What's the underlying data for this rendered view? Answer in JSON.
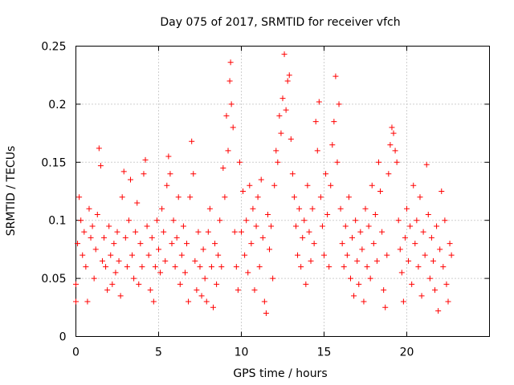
{
  "chart_data": {
    "type": "scatter",
    "title": "Day 075 of 2017, SRMTID for receiver vfch",
    "xlabel": "GPS time / hours",
    "ylabel": "SRMTID / TECUs",
    "xlim": [
      0,
      25
    ],
    "ylim": [
      0,
      0.25
    ],
    "xticks": [
      0,
      5,
      10,
      15,
      20
    ],
    "xtick_labels": [
      "0",
      "5",
      "10",
      "15",
      "20"
    ],
    "yticks": [
      0,
      0.05,
      0.1,
      0.15,
      0.2,
      0.25
    ],
    "ytick_labels": [
      "0",
      "0.05",
      "0.1",
      "0.15",
      "0.2",
      "0.25"
    ],
    "grid": true,
    "marker": "plus",
    "series": [
      {
        "name": "SRMTID",
        "color": "#ff0000",
        "points": [
          [
            0.0,
            0.045
          ],
          [
            0.0,
            0.03
          ],
          [
            0.1,
            0.08
          ],
          [
            0.2,
            0.12
          ],
          [
            0.3,
            0.1
          ],
          [
            0.4,
            0.07
          ],
          [
            0.5,
            0.09
          ],
          [
            0.6,
            0.06
          ],
          [
            0.7,
            0.03
          ],
          [
            0.8,
            0.11
          ],
          [
            0.9,
            0.085
          ],
          [
            1.0,
            0.095
          ],
          [
            1.1,
            0.05
          ],
          [
            1.2,
            0.075
          ],
          [
            1.3,
            0.105
          ],
          [
            1.4,
            0.162
          ],
          [
            1.5,
            0.147
          ],
          [
            1.6,
            0.065
          ],
          [
            1.7,
            0.085
          ],
          [
            1.8,
            0.06
          ],
          [
            1.9,
            0.04
          ],
          [
            2.0,
            0.095
          ],
          [
            2.1,
            0.07
          ],
          [
            2.2,
            0.045
          ],
          [
            2.3,
            0.08
          ],
          [
            2.4,
            0.055
          ],
          [
            2.5,
            0.09
          ],
          [
            2.6,
            0.065
          ],
          [
            2.7,
            0.035
          ],
          [
            2.8,
            0.12
          ],
          [
            2.9,
            0.142
          ],
          [
            3.0,
            0.085
          ],
          [
            3.1,
            0.06
          ],
          [
            3.2,
            0.1
          ],
          [
            3.3,
            0.135
          ],
          [
            3.4,
            0.07
          ],
          [
            3.5,
            0.05
          ],
          [
            3.6,
            0.09
          ],
          [
            3.7,
            0.115
          ],
          [
            3.8,
            0.045
          ],
          [
            3.9,
            0.08
          ],
          [
            4.0,
            0.06
          ],
          [
            4.1,
            0.14
          ],
          [
            4.2,
            0.152
          ],
          [
            4.3,
            0.095
          ],
          [
            4.4,
            0.07
          ],
          [
            4.5,
            0.04
          ],
          [
            4.6,
            0.085
          ],
          [
            4.7,
            0.03
          ],
          [
            4.8,
            0.06
          ],
          [
            4.9,
            0.1
          ],
          [
            5.0,
            0.075
          ],
          [
            5.1,
            0.055
          ],
          [
            5.2,
            0.11
          ],
          [
            5.3,
            0.09
          ],
          [
            5.4,
            0.065
          ],
          [
            5.5,
            0.13
          ],
          [
            5.6,
            0.155
          ],
          [
            5.7,
            0.14
          ],
          [
            5.8,
            0.08
          ],
          [
            5.9,
            0.1
          ],
          [
            6.0,
            0.06
          ],
          [
            6.1,
            0.085
          ],
          [
            6.2,
            0.12
          ],
          [
            6.3,
            0.045
          ],
          [
            6.4,
            0.07
          ],
          [
            6.5,
            0.095
          ],
          [
            6.6,
            0.055
          ],
          [
            6.7,
            0.08
          ],
          [
            6.8,
            0.03
          ],
          [
            6.9,
            0.12
          ],
          [
            7.0,
            0.168
          ],
          [
            7.1,
            0.14
          ],
          [
            7.2,
            0.065
          ],
          [
            7.3,
            0.04
          ],
          [
            7.4,
            0.09
          ],
          [
            7.5,
            0.06
          ],
          [
            7.6,
            0.035
          ],
          [
            7.7,
            0.075
          ],
          [
            7.8,
            0.05
          ],
          [
            7.9,
            0.03
          ],
          [
            8.0,
            0.09
          ],
          [
            8.1,
            0.11
          ],
          [
            8.2,
            0.06
          ],
          [
            8.3,
            0.025
          ],
          [
            8.4,
            0.08
          ],
          [
            8.5,
            0.045
          ],
          [
            8.6,
            0.07
          ],
          [
            8.7,
            0.1
          ],
          [
            8.8,
            0.06
          ],
          [
            8.9,
            0.145
          ],
          [
            9.0,
            0.12
          ],
          [
            9.1,
            0.19
          ],
          [
            9.2,
            0.16
          ],
          [
            9.3,
            0.22
          ],
          [
            9.35,
            0.236
          ],
          [
            9.4,
            0.2
          ],
          [
            9.5,
            0.18
          ],
          [
            9.6,
            0.09
          ],
          [
            9.7,
            0.06
          ],
          [
            9.8,
            0.04
          ],
          [
            9.9,
            0.15
          ],
          [
            10.0,
            0.09
          ],
          [
            10.1,
            0.125
          ],
          [
            10.2,
            0.07
          ],
          [
            10.3,
            0.1
          ],
          [
            10.4,
            0.055
          ],
          [
            10.5,
            0.13
          ],
          [
            10.6,
            0.08
          ],
          [
            10.7,
            0.11
          ],
          [
            10.8,
            0.04
          ],
          [
            10.9,
            0.095
          ],
          [
            11.0,
            0.12
          ],
          [
            11.1,
            0.06
          ],
          [
            11.2,
            0.135
          ],
          [
            11.3,
            0.085
          ],
          [
            11.4,
            0.03
          ],
          [
            11.5,
            0.02
          ],
          [
            11.6,
            0.105
          ],
          [
            11.7,
            0.075
          ],
          [
            11.8,
            0.095
          ],
          [
            11.9,
            0.05
          ],
          [
            12.0,
            0.13
          ],
          [
            12.1,
            0.16
          ],
          [
            12.2,
            0.15
          ],
          [
            12.3,
            0.19
          ],
          [
            12.4,
            0.175
          ],
          [
            12.5,
            0.205
          ],
          [
            12.6,
            0.243
          ],
          [
            12.7,
            0.195
          ],
          [
            12.8,
            0.22
          ],
          [
            12.9,
            0.225
          ],
          [
            13.0,
            0.17
          ],
          [
            13.1,
            0.14
          ],
          [
            13.2,
            0.12
          ],
          [
            13.3,
            0.095
          ],
          [
            13.4,
            0.07
          ],
          [
            13.5,
            0.11
          ],
          [
            13.6,
            0.06
          ],
          [
            13.7,
            0.085
          ],
          [
            13.8,
            0.1
          ],
          [
            13.9,
            0.045
          ],
          [
            14.0,
            0.13
          ],
          [
            14.1,
            0.09
          ],
          [
            14.2,
            0.065
          ],
          [
            14.3,
            0.11
          ],
          [
            14.4,
            0.08
          ],
          [
            14.5,
            0.185
          ],
          [
            14.6,
            0.16
          ],
          [
            14.7,
            0.202
          ],
          [
            14.8,
            0.12
          ],
          [
            14.9,
            0.095
          ],
          [
            15.0,
            0.07
          ],
          [
            15.1,
            0.14
          ],
          [
            15.2,
            0.105
          ],
          [
            15.3,
            0.06
          ],
          [
            15.4,
            0.13
          ],
          [
            15.5,
            0.165
          ],
          [
            15.6,
            0.185
          ],
          [
            15.7,
            0.224
          ],
          [
            15.8,
            0.15
          ],
          [
            15.9,
            0.2
          ],
          [
            16.0,
            0.11
          ],
          [
            16.1,
            0.08
          ],
          [
            16.2,
            0.06
          ],
          [
            16.3,
            0.095
          ],
          [
            16.4,
            0.07
          ],
          [
            16.5,
            0.12
          ],
          [
            16.6,
            0.05
          ],
          [
            16.7,
            0.085
          ],
          [
            16.8,
            0.035
          ],
          [
            16.9,
            0.1
          ],
          [
            17.0,
            0.065
          ],
          [
            17.1,
            0.045
          ],
          [
            17.2,
            0.09
          ],
          [
            17.3,
            0.075
          ],
          [
            17.4,
            0.03
          ],
          [
            17.5,
            0.11
          ],
          [
            17.6,
            0.06
          ],
          [
            17.7,
            0.095
          ],
          [
            17.8,
            0.05
          ],
          [
            17.9,
            0.13
          ],
          [
            18.0,
            0.08
          ],
          [
            18.1,
            0.105
          ],
          [
            18.2,
            0.065
          ],
          [
            18.3,
            0.15
          ],
          [
            18.4,
            0.125
          ],
          [
            18.5,
            0.09
          ],
          [
            18.6,
            0.04
          ],
          [
            18.7,
            0.025
          ],
          [
            18.8,
            0.07
          ],
          [
            18.9,
            0.14
          ],
          [
            19.0,
            0.165
          ],
          [
            19.1,
            0.18
          ],
          [
            19.2,
            0.175
          ],
          [
            19.3,
            0.16
          ],
          [
            19.4,
            0.15
          ],
          [
            19.5,
            0.1
          ],
          [
            19.6,
            0.075
          ],
          [
            19.7,
            0.055
          ],
          [
            19.8,
            0.03
          ],
          [
            19.9,
            0.085
          ],
          [
            20.0,
            0.11
          ],
          [
            20.1,
            0.065
          ],
          [
            20.2,
            0.095
          ],
          [
            20.3,
            0.045
          ],
          [
            20.4,
            0.13
          ],
          [
            20.5,
            0.08
          ],
          [
            20.6,
            0.1
          ],
          [
            20.7,
            0.06
          ],
          [
            20.8,
            0.12
          ],
          [
            20.9,
            0.035
          ],
          [
            21.0,
            0.09
          ],
          [
            21.1,
            0.07
          ],
          [
            21.2,
            0.148
          ],
          [
            21.3,
            0.105
          ],
          [
            21.4,
            0.05
          ],
          [
            21.5,
            0.085
          ],
          [
            21.6,
            0.065
          ],
          [
            21.7,
            0.04
          ],
          [
            21.8,
            0.095
          ],
          [
            21.9,
            0.022
          ],
          [
            22.0,
            0.075
          ],
          [
            22.1,
            0.125
          ],
          [
            22.2,
            0.06
          ],
          [
            22.3,
            0.1
          ],
          [
            22.4,
            0.045
          ],
          [
            22.5,
            0.03
          ],
          [
            22.6,
            0.08
          ],
          [
            22.7,
            0.07
          ]
        ]
      }
    ]
  }
}
